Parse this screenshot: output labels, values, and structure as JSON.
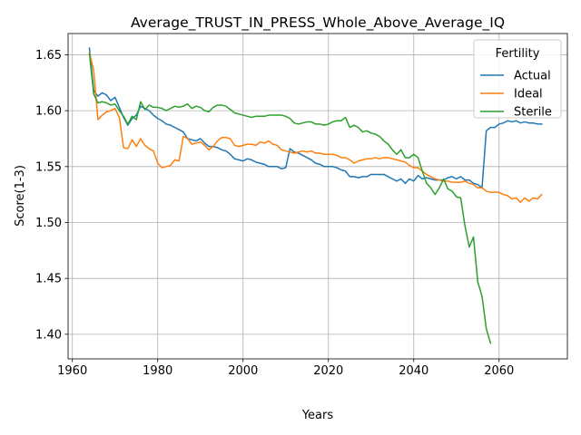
{
  "chart_data": {
    "type": "line",
    "title": "Average_TRUST_IN_PRESS_Whole_Above_Average_IQ",
    "xlabel": "Years",
    "ylabel": "Score(1-3)",
    "xlim": [
      1959,
      2076
    ],
    "ylim": [
      1.378,
      1.669
    ],
    "xticks": [
      1960,
      1980,
      2000,
      2020,
      2040,
      2060
    ],
    "yticks": [
      1.4,
      1.45,
      1.5,
      1.55,
      1.6,
      1.65
    ],
    "ytick_labels": [
      "1.40",
      "1.45",
      "1.50",
      "1.55",
      "1.60",
      "1.65"
    ],
    "grid": true,
    "legend": {
      "title": "Fertility",
      "placement": "top-right"
    },
    "series": [
      {
        "name": "Actual",
        "color": "#1f77b4",
        "points": [
          [
            1964,
            1.656
          ],
          [
            1965,
            1.618
          ],
          [
            1966,
            1.613
          ],
          [
            1967,
            1.616
          ],
          [
            1968,
            1.614
          ],
          [
            1969,
            1.609
          ],
          [
            1970,
            1.612
          ],
          [
            1971,
            1.603
          ],
          [
            1972,
            1.594
          ],
          [
            1973,
            1.587
          ],
          [
            1974,
            1.593
          ],
          [
            1975,
            1.596
          ],
          [
            1976,
            1.604
          ],
          [
            1977,
            1.602
          ],
          [
            1978,
            1.6
          ],
          [
            1979,
            1.596
          ],
          [
            1980,
            1.593
          ],
          [
            1981,
            1.591
          ],
          [
            1982,
            1.588
          ],
          [
            1983,
            1.587
          ],
          [
            1984,
            1.585
          ],
          [
            1985,
            1.583
          ],
          [
            1986,
            1.581
          ],
          [
            1987,
            1.575
          ],
          [
            1988,
            1.574
          ],
          [
            1989,
            1.573
          ],
          [
            1990,
            1.575
          ],
          [
            1991,
            1.571
          ],
          [
            1992,
            1.568
          ],
          [
            1993,
            1.568
          ],
          [
            1994,
            1.567
          ],
          [
            1995,
            1.565
          ],
          [
            1996,
            1.564
          ],
          [
            1997,
            1.561
          ],
          [
            1998,
            1.557
          ],
          [
            1999,
            1.556
          ],
          [
            2000,
            1.555
          ],
          [
            2001,
            1.557
          ],
          [
            2002,
            1.556
          ],
          [
            2003,
            1.554
          ],
          [
            2004,
            1.553
          ],
          [
            2005,
            1.552
          ],
          [
            2006,
            1.55
          ],
          [
            2007,
            1.55
          ],
          [
            2008,
            1.55
          ],
          [
            2009,
            1.548
          ],
          [
            2010,
            1.549
          ],
          [
            2011,
            1.566
          ],
          [
            2012,
            1.563
          ],
          [
            2013,
            1.562
          ],
          [
            2014,
            1.56
          ],
          [
            2015,
            1.558
          ],
          [
            2016,
            1.556
          ],
          [
            2017,
            1.553
          ],
          [
            2018,
            1.552
          ],
          [
            2019,
            1.55
          ],
          [
            2020,
            1.55
          ],
          [
            2021,
            1.55
          ],
          [
            2022,
            1.549
          ],
          [
            2023,
            1.547
          ],
          [
            2024,
            1.546
          ],
          [
            2025,
            1.541
          ],
          [
            2026,
            1.541
          ],
          [
            2027,
            1.54
          ],
          [
            2028,
            1.541
          ],
          [
            2029,
            1.541
          ],
          [
            2030,
            1.543
          ],
          [
            2031,
            1.543
          ],
          [
            2032,
            1.543
          ],
          [
            2033,
            1.543
          ],
          [
            2034,
            1.541
          ],
          [
            2035,
            1.539
          ],
          [
            2036,
            1.537
          ],
          [
            2037,
            1.539
          ],
          [
            2038,
            1.535
          ],
          [
            2039,
            1.539
          ],
          [
            2040,
            1.537
          ],
          [
            2041,
            1.542
          ],
          [
            2042,
            1.539
          ],
          [
            2043,
            1.54
          ],
          [
            2044,
            1.539
          ],
          [
            2045,
            1.538
          ],
          [
            2046,
            1.538
          ],
          [
            2047,
            1.538
          ],
          [
            2048,
            1.54
          ],
          [
            2049,
            1.541
          ],
          [
            2050,
            1.539
          ],
          [
            2051,
            1.541
          ],
          [
            2052,
            1.538
          ],
          [
            2053,
            1.538
          ],
          [
            2054,
            1.535
          ],
          [
            2055,
            1.534
          ],
          [
            2056,
            1.531
          ],
          [
            2057,
            1.582
          ],
          [
            2058,
            1.585
          ],
          [
            2059,
            1.585
          ],
          [
            2060,
            1.588
          ],
          [
            2061,
            1.589
          ],
          [
            2062,
            1.591
          ],
          [
            2063,
            1.59
          ],
          [
            2064,
            1.591
          ],
          [
            2065,
            1.589
          ],
          [
            2066,
            1.59
          ],
          [
            2067,
            1.589
          ],
          [
            2068,
            1.589
          ],
          [
            2069,
            1.588
          ],
          [
            2070,
            1.588
          ]
        ]
      },
      {
        "name": "Ideal",
        "color": "#ff7f0e",
        "points": [
          [
            1964,
            1.652
          ],
          [
            1965,
            1.636
          ],
          [
            1966,
            1.592
          ],
          [
            1967,
            1.596
          ],
          [
            1968,
            1.599
          ],
          [
            1969,
            1.6
          ],
          [
            1970,
            1.602
          ],
          [
            1971,
            1.594
          ],
          [
            1972,
            1.567
          ],
          [
            1973,
            1.566
          ],
          [
            1974,
            1.574
          ],
          [
            1975,
            1.568
          ],
          [
            1976,
            1.575
          ],
          [
            1977,
            1.569
          ],
          [
            1978,
            1.566
          ],
          [
            1979,
            1.564
          ],
          [
            1980,
            1.553
          ],
          [
            1981,
            1.549
          ],
          [
            1982,
            1.55
          ],
          [
            1983,
            1.551
          ],
          [
            1984,
            1.556
          ],
          [
            1985,
            1.555
          ],
          [
            1986,
            1.577
          ],
          [
            1987,
            1.575
          ],
          [
            1988,
            1.57
          ],
          [
            1989,
            1.571
          ],
          [
            1990,
            1.572
          ],
          [
            1991,
            1.569
          ],
          [
            1992,
            1.565
          ],
          [
            1993,
            1.568
          ],
          [
            1994,
            1.573
          ],
          [
            1995,
            1.576
          ],
          [
            1996,
            1.576
          ],
          [
            1997,
            1.575
          ],
          [
            1998,
            1.569
          ],
          [
            1999,
            1.568
          ],
          [
            2000,
            1.569
          ],
          [
            2001,
            1.57
          ],
          [
            2002,
            1.57
          ],
          [
            2003,
            1.569
          ],
          [
            2004,
            1.572
          ],
          [
            2005,
            1.571
          ],
          [
            2006,
            1.573
          ],
          [
            2007,
            1.57
          ],
          [
            2008,
            1.569
          ],
          [
            2009,
            1.565
          ],
          [
            2010,
            1.564
          ],
          [
            2011,
            1.563
          ],
          [
            2012,
            1.562
          ],
          [
            2013,
            1.563
          ],
          [
            2014,
            1.564
          ],
          [
            2015,
            1.563
          ],
          [
            2016,
            1.564
          ],
          [
            2017,
            1.562
          ],
          [
            2018,
            1.562
          ],
          [
            2019,
            1.561
          ],
          [
            2020,
            1.561
          ],
          [
            2021,
            1.561
          ],
          [
            2022,
            1.56
          ],
          [
            2023,
            1.558
          ],
          [
            2024,
            1.558
          ],
          [
            2025,
            1.556
          ],
          [
            2026,
            1.553
          ],
          [
            2027,
            1.555
          ],
          [
            2028,
            1.556
          ],
          [
            2029,
            1.557
          ],
          [
            2030,
            1.557
          ],
          [
            2031,
            1.558
          ],
          [
            2032,
            1.557
          ],
          [
            2033,
            1.558
          ],
          [
            2034,
            1.558
          ],
          [
            2035,
            1.557
          ],
          [
            2036,
            1.556
          ],
          [
            2037,
            1.555
          ],
          [
            2038,
            1.554
          ],
          [
            2039,
            1.551
          ],
          [
            2040,
            1.549
          ],
          [
            2041,
            1.549
          ],
          [
            2042,
            1.546
          ],
          [
            2043,
            1.543
          ],
          [
            2044,
            1.541
          ],
          [
            2045,
            1.539
          ],
          [
            2046,
            1.538
          ],
          [
            2047,
            1.537
          ],
          [
            2048,
            1.537
          ],
          [
            2049,
            1.536
          ],
          [
            2050,
            1.536
          ],
          [
            2051,
            1.536
          ],
          [
            2052,
            1.537
          ],
          [
            2053,
            1.535
          ],
          [
            2054,
            1.534
          ],
          [
            2055,
            1.531
          ],
          [
            2056,
            1.531
          ],
          [
            2057,
            1.528
          ],
          [
            2058,
            1.527
          ],
          [
            2059,
            1.527
          ],
          [
            2060,
            1.527
          ],
          [
            2061,
            1.525
          ],
          [
            2062,
            1.524
          ],
          [
            2063,
            1.521
          ],
          [
            2064,
            1.522
          ],
          [
            2065,
            1.518
          ],
          [
            2066,
            1.522
          ],
          [
            2067,
            1.519
          ],
          [
            2068,
            1.522
          ],
          [
            2069,
            1.521
          ],
          [
            2070,
            1.525
          ]
        ]
      },
      {
        "name": "Sterile",
        "color": "#2ca02c",
        "points": [
          [
            1964,
            1.651
          ],
          [
            1965,
            1.615
          ],
          [
            1966,
            1.607
          ],
          [
            1967,
            1.608
          ],
          [
            1968,
            1.607
          ],
          [
            1969,
            1.605
          ],
          [
            1970,
            1.606
          ],
          [
            1971,
            1.6
          ],
          [
            1972,
            1.595
          ],
          [
            1973,
            1.588
          ],
          [
            1974,
            1.595
          ],
          [
            1975,
            1.592
          ],
          [
            1976,
            1.608
          ],
          [
            1977,
            1.601
          ],
          [
            1978,
            1.605
          ],
          [
            1979,
            1.603
          ],
          [
            1980,
            1.603
          ],
          [
            1981,
            1.602
          ],
          [
            1982,
            1.6
          ],
          [
            1983,
            1.602
          ],
          [
            1984,
            1.604
          ],
          [
            1985,
            1.603
          ],
          [
            1986,
            1.604
          ],
          [
            1987,
            1.606
          ],
          [
            1988,
            1.602
          ],
          [
            1989,
            1.604
          ],
          [
            1990,
            1.603
          ],
          [
            1991,
            1.6
          ],
          [
            1992,
            1.599
          ],
          [
            1993,
            1.603
          ],
          [
            1994,
            1.605
          ],
          [
            1995,
            1.605
          ],
          [
            1996,
            1.604
          ],
          [
            1997,
            1.601
          ],
          [
            1998,
            1.598
          ],
          [
            1999,
            1.597
          ],
          [
            2000,
            1.596
          ],
          [
            2001,
            1.595
          ],
          [
            2002,
            1.594
          ],
          [
            2003,
            1.595
          ],
          [
            2004,
            1.595
          ],
          [
            2005,
            1.595
          ],
          [
            2006,
            1.596
          ],
          [
            2007,
            1.596
          ],
          [
            2008,
            1.596
          ],
          [
            2009,
            1.596
          ],
          [
            2010,
            1.595
          ],
          [
            2011,
            1.593
          ],
          [
            2012,
            1.589
          ],
          [
            2013,
            1.588
          ],
          [
            2014,
            1.589
          ],
          [
            2015,
            1.59
          ],
          [
            2016,
            1.59
          ],
          [
            2017,
            1.588
          ],
          [
            2018,
            1.588
          ],
          [
            2019,
            1.587
          ],
          [
            2020,
            1.588
          ],
          [
            2021,
            1.59
          ],
          [
            2022,
            1.591
          ],
          [
            2023,
            1.591
          ],
          [
            2024,
            1.594
          ],
          [
            2025,
            1.585
          ],
          [
            2026,
            1.587
          ],
          [
            2027,
            1.585
          ],
          [
            2028,
            1.581
          ],
          [
            2029,
            1.582
          ],
          [
            2030,
            1.58
          ],
          [
            2031,
            1.579
          ],
          [
            2032,
            1.577
          ],
          [
            2033,
            1.573
          ],
          [
            2034,
            1.57
          ],
          [
            2035,
            1.565
          ],
          [
            2036,
            1.561
          ],
          [
            2037,
            1.565
          ],
          [
            2038,
            1.558
          ],
          [
            2039,
            1.558
          ],
          [
            2040,
            1.561
          ],
          [
            2041,
            1.558
          ],
          [
            2042,
            1.546
          ],
          [
            2043,
            1.535
          ],
          [
            2044,
            1.531
          ],
          [
            2045,
            1.525
          ],
          [
            2046,
            1.531
          ],
          [
            2047,
            1.539
          ],
          [
            2048,
            1.53
          ],
          [
            2049,
            1.528
          ],
          [
            2050,
            1.523
          ],
          [
            2051,
            1.522
          ],
          [
            2052,
            1.497
          ],
          [
            2053,
            1.478
          ],
          [
            2054,
            1.487
          ],
          [
            2055,
            1.447
          ],
          [
            2056,
            1.434
          ],
          [
            2057,
            1.405
          ],
          [
            2058,
            1.392
          ]
        ]
      }
    ]
  }
}
